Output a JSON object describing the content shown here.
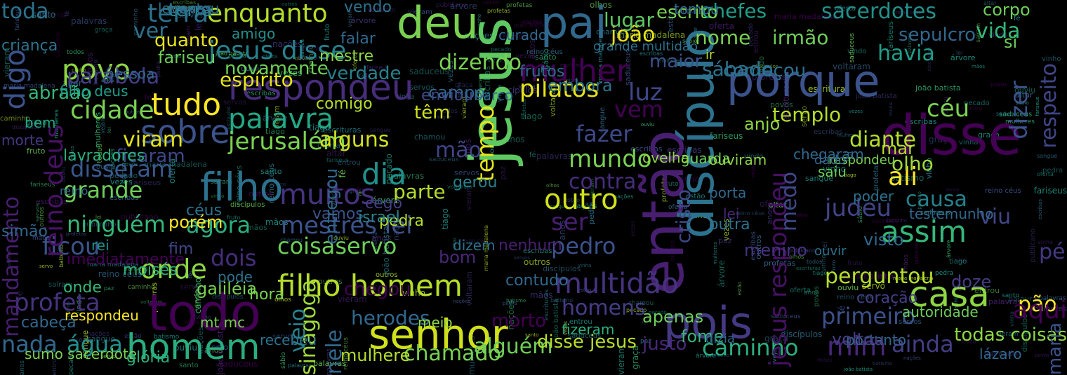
{
  "words": [
    {
      "text": "jesus",
      "color": "#5ec962"
    },
    {
      "text": "deu",
      "color": "#7ad151"
    },
    {
      "text": "pai",
      "color": "#31688e"
    },
    {
      "text": "senhor",
      "color": "#d0e11c"
    },
    {
      "text": "homem",
      "color": "#29af7f"
    },
    {
      "text": "disse",
      "color": "#440154"
    },
    {
      "text": "pois",
      "color": "#443983"
    },
    {
      "text": "porque",
      "color": "#3b528b"
    },
    {
      "text": "então",
      "color": "#481f70"
    },
    {
      "text": "discípulo",
      "color": "#2c728e"
    },
    {
      "text": "todo",
      "color": "#440154"
    },
    {
      "text": "filho",
      "color": "#2c728e"
    },
    {
      "text": "casa",
      "color": "#8fd744"
    },
    {
      "text": "assim",
      "color": "#35b779"
    },
    {
      "text": "filho homem",
      "color": "#b5de2b"
    },
    {
      "text": "respondeu",
      "color": "#472d7b"
    },
    {
      "text": "multidão",
      "color": "#46337f"
    },
    {
      "text": "outro",
      "color": "#d0e11c"
    },
    {
      "text": "tudo",
      "color": "#fde725"
    },
    {
      "text": "palavra",
      "color": "#22a884"
    },
    {
      "text": "onde",
      "color": "#8fd744"
    },
    {
      "text": "terra",
      "color": "#2c728e"
    },
    {
      "text": "enquanto",
      "color": "#b5de2b"
    },
    {
      "text": "jesus disse",
      "color": "#26828e"
    },
    {
      "text": "cidade",
      "color": "#7ad151"
    },
    {
      "text": "dia",
      "color": "#21918c"
    },
    {
      "text": "mestres lei",
      "color": "#3b528b"
    },
    {
      "text": "muitos",
      "color": "#46337f"
    },
    {
      "text": "ninguém",
      "color": "#35b779"
    },
    {
      "text": "dois",
      "color": "#472d7b"
    },
    {
      "text": "perguntou",
      "color": "#b5de2b"
    },
    {
      "text": "alguém",
      "color": "#6ece58"
    },
    {
      "text": "caminho",
      "color": "#2ab07f"
    },
    {
      "text": "primeiro",
      "color": "#3b528b"
    },
    {
      "text": "ainda",
      "color": "#433e85"
    },
    {
      "text": "mim",
      "color": "#482878"
    },
    {
      "text": "chefes",
      "color": "#1f9e89"
    },
    {
      "text": "sacerdotes",
      "color": "#21918c"
    },
    {
      "text": "sepulcro",
      "color": "#31688e"
    },
    {
      "text": "vida",
      "color": "#35b779"
    },
    {
      "text": "joão",
      "color": "#e5e419"
    },
    {
      "text": "nome",
      "color": "#7ad151"
    },
    {
      "text": "irmão",
      "color": "#6ece58"
    },
    {
      "text": "sábado",
      "color": "#2c728e"
    },
    {
      "text": "havia",
      "color": "#1f9e89"
    },
    {
      "text": "pilatos",
      "color": "#e5e419"
    },
    {
      "text": "templo",
      "color": "#b5de2b"
    },
    {
      "text": "céu",
      "color": "#7ad151"
    },
    {
      "text": "diante",
      "color": "#b5de2b"
    },
    {
      "text": "mundo",
      "color": "#7ad151"
    },
    {
      "text": "contra",
      "color": "#472d7b"
    },
    {
      "text": "ali",
      "color": "#fde725"
    },
    {
      "text": "causa",
      "color": "#26828e"
    },
    {
      "text": "judeu",
      "color": "#414487"
    },
    {
      "text": "dizer",
      "color": "#3b528b"
    },
    {
      "text": "respeito",
      "color": "#404688"
    },
    {
      "text": "jesus respondeu",
      "color": "#471164"
    },
    {
      "text": "cristo",
      "color": "#3e4989"
    },
    {
      "text": "povo",
      "color": "#8fd744"
    },
    {
      "text": "dizendo",
      "color": "#7ad151"
    },
    {
      "text": "mulher",
      "color": "#440154"
    },
    {
      "text": "espírito",
      "color": "#e5e419"
    },
    {
      "text": "sobre",
      "color": "#3b528b"
    },
    {
      "text": "jerusalém",
      "color": "#7ad151"
    },
    {
      "text": "alguns",
      "color": "#d0e11c"
    },
    {
      "text": "mão",
      "color": "#414487"
    },
    {
      "text": "tempo",
      "color": "#e5e419"
    },
    {
      "text": "fazer",
      "color": "#3e4989"
    },
    {
      "text": "ver",
      "color": "#2c728e"
    },
    {
      "text": "disseram",
      "color": "#38598c"
    },
    {
      "text": "grande",
      "color": "#6ece58"
    },
    {
      "text": "agora",
      "color": "#2ab07f"
    },
    {
      "text": "coisaservo",
      "color": "#6ece58"
    },
    {
      "text": "ficou",
      "color": "#3b528b"
    },
    {
      "text": "profeta",
      "color": "#46337f"
    },
    {
      "text": "nada",
      "color": "#31688e"
    },
    {
      "text": "água",
      "color": "#21918c"
    },
    {
      "text": "herodes",
      "color": "#31688e"
    },
    {
      "text": "chamado",
      "color": "#7ad151"
    },
    {
      "text": "sinagoga",
      "color": "#a0da39"
    },
    {
      "text": "nele",
      "color": "#31688e"
    },
    {
      "text": "veio",
      "color": "#26828e"
    },
    {
      "text": "chegou",
      "color": "#440154"
    },
    {
      "text": "pedro",
      "color": "#3b528b"
    },
    {
      "text": "homens",
      "color": "#433e85"
    },
    {
      "text": "disse jesus",
      "color": "#b5de2b"
    },
    {
      "text": "reino deus",
      "color": "#471164"
    },
    {
      "text": "digo",
      "color": "#3b528b"
    },
    {
      "text": "parábola",
      "color": "#433e85"
    },
    {
      "text": "toda",
      "color": "#2c728e"
    },
    {
      "text": "têm",
      "color": "#d0e11c"
    },
    {
      "text": "verdade",
      "color": "#26828e"
    },
    {
      "text": "pão",
      "color": "#fde725"
    },
    {
      "text": "aqui",
      "color": "#440154"
    },
    {
      "text": "pé",
      "color": "#443983"
    },
    {
      "text": "viu",
      "color": "#404688"
    },
    {
      "text": "ser",
      "color": "#481f70"
    },
    {
      "text": "luz",
      "color": "#404688"
    },
    {
      "text": "vem",
      "color": "#440154"
    },
    {
      "text": "olho",
      "color": "#a0da39"
    },
    {
      "text": "medo",
      "color": "#3e4989"
    },
    {
      "text": "começou",
      "color": "#2c728e"
    },
    {
      "text": "maior",
      "color": "#3b528b"
    },
    {
      "text": "terra2",
      "color": "#26828e"
    },
    {
      "text": "novamente",
      "color": "#6ece58"
    },
    {
      "text": "abraão",
      "color": "#35b779"
    },
    {
      "text": "filho deus",
      "color": "#1f9e89"
    },
    {
      "text": "comigo",
      "color": "#b5de2b"
    },
    {
      "text": "campo",
      "color": "#31688e"
    },
    {
      "text": "embora",
      "color": "#2c728e"
    },
    {
      "text": "quanto",
      "color": "#e5e419"
    },
    {
      "text": "fariseu",
      "color": "#6ece58"
    },
    {
      "text": "mestre",
      "color": "#8fd744"
    },
    {
      "text": "frutos",
      "color": "#31688e"
    },
    {
      "text": "lugar",
      "color": "#5ec962"
    },
    {
      "text": "escrito",
      "color": "#7ad151"
    },
    {
      "text": "corpo",
      "color": "#6ece58"
    },
    {
      "text": "bem",
      "color": "#22a884"
    },
    {
      "text": "morte",
      "color": "#443983"
    },
    {
      "text": "viram",
      "color": "#e5e419"
    },
    {
      "text": "ficaram",
      "color": "#3e4989"
    },
    {
      "text": "lavradores",
      "color": "#2ab07f"
    },
    {
      "text": "reino",
      "color": "#31688e"
    },
    {
      "text": "céus",
      "color": "#2c728e"
    },
    {
      "text": "fim",
      "color": "#404688"
    },
    {
      "text": "porém",
      "color": "#fde725"
    },
    {
      "text": "rei",
      "color": "#21918c"
    },
    {
      "text": "parte",
      "color": "#b5de2b"
    },
    {
      "text": "vamos",
      "color": "#3b528b"
    },
    {
      "text": "pedra",
      "color": "#b5de2b"
    },
    {
      "text": "cego",
      "color": "#433e85"
    },
    {
      "text": "gerou",
      "color": "#26828e"
    },
    {
      "text": "bom",
      "color": "#482878"
    },
    {
      "text": "dizem",
      "color": "#2c728e"
    },
    {
      "text": "nenhum",
      "color": "#481f70"
    },
    {
      "text": "contudo",
      "color": "#31688e"
    },
    {
      "text": "hora",
      "color": "#7ad151"
    },
    {
      "text": "galiléia",
      "color": "#7ad151"
    },
    {
      "text": "onde2",
      "color": "#35b779"
    },
    {
      "text": "imediatamente",
      "color": "#440154"
    },
    {
      "text": "mandamento",
      "color": "#481f70"
    },
    {
      "text": "moisés",
      "color": "#2ab07f"
    },
    {
      "text": "respondeu2",
      "color": "#fde725"
    },
    {
      "text": "cabeça",
      "color": "#31688e"
    },
    {
      "text": "sumo sacerdote",
      "color": "#7ad151"
    },
    {
      "text": "glória",
      "color": "#2ab07f"
    },
    {
      "text": "mulhere",
      "color": "#b5de2b"
    },
    {
      "text": "meio",
      "color": "#8fd744"
    },
    {
      "text": "justo",
      "color": "#482878"
    },
    {
      "text": "portanto",
      "color": "#31688e"
    },
    {
      "text": "autoridade",
      "color": "#6ece58"
    },
    {
      "text": "coração",
      "color": "#433e85"
    },
    {
      "text": "visto",
      "color": "#31688e"
    },
    {
      "text": "menino",
      "color": "#46337f"
    },
    {
      "text": "morto",
      "color": "#440154"
    },
    {
      "text": "apenas",
      "color": "#6ece58"
    },
    {
      "text": "mar",
      "color": "#b5de2b"
    },
    {
      "text": "porta",
      "color": "#31688e"
    },
    {
      "text": "outra",
      "color": "#2c728e"
    },
    {
      "text": "testemunho",
      "color": "#31688e"
    },
    {
      "text": "fome",
      "color": "#35b779"
    },
    {
      "text": "fizeram",
      "color": "#2ab07f"
    },
    {
      "text": "voltou",
      "color": "#433e85"
    },
    {
      "text": "todas coisas",
      "color": "#8fd744"
    },
    {
      "text": "lázaro",
      "color": "#31688e"
    },
    {
      "text": "maria",
      "color": "#3b528b"
    },
    {
      "text": "doze",
      "color": "#433e85"
    },
    {
      "text": "si",
      "color": "#6ece58"
    },
    {
      "text": "anjo",
      "color": "#8fd744"
    },
    {
      "text": "entregou",
      "color": "#31688e"
    },
    {
      "text": "enviou",
      "color": "#3e4989"
    },
    {
      "text": "falar",
      "color": "#31688e"
    },
    {
      "text": "israel",
      "color": "#26828e"
    },
    {
      "text": "vendo",
      "color": "#2c728e"
    },
    {
      "text": "criança",
      "color": "#2c728e"
    },
    {
      "text": "simão",
      "color": "#31688e"
    },
    {
      "text": "barco",
      "color": "#31688e"
    },
    {
      "text": "amigo",
      "color": "#21918c"
    },
    {
      "text": "pode",
      "color": "#2c728e"
    },
    {
      "text": "mt mc",
      "color": "#7ad151"
    },
    {
      "text": "guarda",
      "color": "#6ece58"
    },
    {
      "text": "ovelha",
      "color": "#8fd744"
    },
    {
      "text": "poder",
      "color": "#2c728e"
    },
    {
      "text": "saiu",
      "color": "#6ece58"
    },
    {
      "text": "ouviram",
      "color": "#8fd744"
    },
    {
      "text": "lei",
      "color": "#482878"
    },
    {
      "text": "ir",
      "color": "#b5de2b"
    },
    {
      "text": "dizia",
      "color": "#31688e"
    },
    {
      "text": "curado",
      "color": "#31688e"
    },
    {
      "text": "recebeu",
      "color": "#2c728e"
    },
    {
      "text": "ouvir",
      "color": "#2c728e"
    },
    {
      "text": "grande multidão",
      "color": "#2c728e"
    },
    {
      "text": "respondeu3",
      "color": "#7ad151"
    },
    {
      "text": "dado",
      "color": "#31688e"
    },
    {
      "text": "tomou",
      "color": "#31688e"
    },
    {
      "text": "levantou",
      "color": "#2c728e"
    },
    {
      "text": "trevas",
      "color": "#31688e"
    },
    {
      "text": "chegaram",
      "color": "#31688e"
    },
    {
      "text": "pessoa",
      "color": "#31688e"
    }
  ]
}
